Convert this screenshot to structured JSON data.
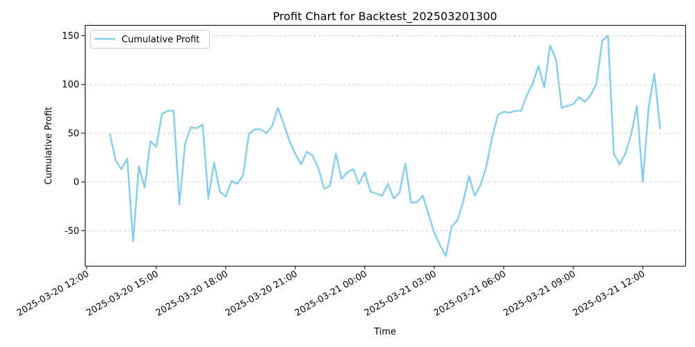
{
  "chart_data": {
    "type": "line",
    "title": "Profit Chart for Backtest_202503201300",
    "xlabel": "Time",
    "ylabel": "Cumulative Profit",
    "grid": "y",
    "legend_position": "top-left",
    "xlim": [
      "2025-03-20 11:55",
      "2025-03-21 13:50"
    ],
    "ylim": [
      -86,
      161
    ],
    "x_ticks": [
      "2025-03-20 12:00",
      "2025-03-20 15:00",
      "2025-03-20 18:00",
      "2025-03-20 21:00",
      "2025-03-21 00:00",
      "2025-03-21 03:00",
      "2025-03-21 06:00",
      "2025-03-21 09:00",
      "2025-03-21 12:00"
    ],
    "y_ticks": [
      -50,
      0,
      50,
      100,
      150
    ],
    "series": [
      {
        "name": "Cumulative Profit",
        "color": "#87ceeb",
        "x": [
          "2025-03-20 13:00",
          "2025-03-20 13:15",
          "2025-03-20 13:30",
          "2025-03-20 13:45",
          "2025-03-20 14:00",
          "2025-03-20 14:15",
          "2025-03-20 14:30",
          "2025-03-20 14:45",
          "2025-03-20 15:00",
          "2025-03-20 15:15",
          "2025-03-20 15:30",
          "2025-03-20 15:45",
          "2025-03-20 16:00",
          "2025-03-20 16:15",
          "2025-03-20 16:30",
          "2025-03-20 16:45",
          "2025-03-20 17:00",
          "2025-03-20 17:15",
          "2025-03-20 17:30",
          "2025-03-20 17:45",
          "2025-03-20 18:00",
          "2025-03-20 18:15",
          "2025-03-20 18:30",
          "2025-03-20 18:45",
          "2025-03-20 19:00",
          "2025-03-20 19:15",
          "2025-03-20 19:30",
          "2025-03-20 19:45",
          "2025-03-20 20:00",
          "2025-03-20 20:15",
          "2025-03-20 20:30",
          "2025-03-20 20:45",
          "2025-03-20 21:00",
          "2025-03-20 21:15",
          "2025-03-20 21:30",
          "2025-03-20 21:45",
          "2025-03-20 22:00",
          "2025-03-20 22:15",
          "2025-03-20 22:30",
          "2025-03-20 22:45",
          "2025-03-20 23:00",
          "2025-03-20 23:15",
          "2025-03-20 23:30",
          "2025-03-20 23:45",
          "2025-03-21 00:00",
          "2025-03-21 00:15",
          "2025-03-21 00:30",
          "2025-03-21 00:45",
          "2025-03-21 01:00",
          "2025-03-21 01:15",
          "2025-03-21 01:30",
          "2025-03-21 01:45",
          "2025-03-21 02:00",
          "2025-03-21 02:15",
          "2025-03-21 02:30",
          "2025-03-21 02:45",
          "2025-03-21 03:00",
          "2025-03-21 03:15",
          "2025-03-21 03:30",
          "2025-03-21 03:45",
          "2025-03-21 04:00",
          "2025-03-21 04:15",
          "2025-03-21 04:30",
          "2025-03-21 04:45",
          "2025-03-21 05:00",
          "2025-03-21 05:15",
          "2025-03-21 05:30",
          "2025-03-21 05:45",
          "2025-03-21 06:00",
          "2025-03-21 06:15",
          "2025-03-21 06:30",
          "2025-03-21 06:45",
          "2025-03-21 07:00",
          "2025-03-21 07:15",
          "2025-03-21 07:30",
          "2025-03-21 07:45",
          "2025-03-21 08:00",
          "2025-03-21 08:15",
          "2025-03-21 08:30",
          "2025-03-21 08:45",
          "2025-03-21 09:00",
          "2025-03-21 09:15",
          "2025-03-21 09:30",
          "2025-03-21 09:45",
          "2025-03-21 10:00",
          "2025-03-21 10:15",
          "2025-03-21 10:30",
          "2025-03-21 10:45",
          "2025-03-21 11:00",
          "2025-03-21 11:15",
          "2025-03-21 11:30",
          "2025-03-21 11:45",
          "2025-03-21 12:00",
          "2025-03-21 12:15",
          "2025-03-21 12:30",
          "2025-03-21 12:45"
        ],
        "values": [
          49,
          22,
          13,
          24,
          -61,
          16,
          -6,
          42,
          36,
          70,
          73,
          73,
          -23,
          40,
          56,
          55,
          59,
          -17,
          20,
          -10,
          -15,
          1,
          -2,
          7,
          49,
          54,
          54,
          50,
          57,
          76,
          60,
          42,
          29,
          18,
          31,
          27,
          14,
          -7,
          -4,
          29,
          3,
          10,
          13,
          -2,
          10,
          -10,
          -12,
          -14,
          -2,
          -17,
          -11,
          19,
          -21,
          -21,
          -14,
          -33,
          -52,
          -65,
          -76,
          -46,
          -39,
          -20,
          6,
          -14,
          -3,
          16,
          46,
          69,
          72,
          71,
          73,
          73,
          89,
          101,
          119,
          97,
          140,
          126,
          76,
          78,
          80,
          87,
          82,
          89,
          101,
          145,
          150,
          29,
          18,
          29,
          49,
          78,
          0,
          76,
          111,
          55
        ]
      }
    ]
  }
}
